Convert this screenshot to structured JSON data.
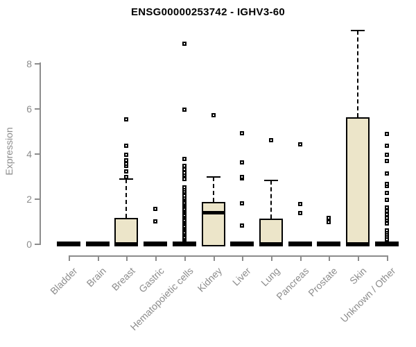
{
  "colors": {
    "box_fill": "#ECE5C9",
    "box_stroke": "#000000",
    "axis": "#8C8C8C",
    "tick_label": "#8C8C8C",
    "title": "#000000",
    "background": "#FFFFFF"
  },
  "chart_data": {
    "type": "boxplot",
    "title": "ENSG00000253742 - IGHV3-60",
    "xlabel": "",
    "ylabel": "Expression",
    "yticks": [
      0,
      2,
      4,
      6,
      8
    ],
    "ylim": [
      0,
      9.6
    ],
    "grid": false,
    "legend": null,
    "categories": [
      "Bladder",
      "Brain",
      "Breast",
      "Gastric",
      "Hematopoietic cells",
      "Kidney",
      "Liver",
      "Lung",
      "Pancreas",
      "Prostate",
      "Skin",
      "Unknown / Other"
    ],
    "series": [
      {
        "category": "Bladder",
        "q1": 0,
        "median": 0,
        "q3": 0,
        "whisker_low": 0,
        "whisker_high": 0,
        "outliers": []
      },
      {
        "category": "Brain",
        "q1": 0,
        "median": 0,
        "q3": 0,
        "whisker_low": 0,
        "whisker_high": 0,
        "outliers": []
      },
      {
        "category": "Breast",
        "q1": 0,
        "median": 0,
        "q3": 1.15,
        "whisker_low": 0,
        "whisker_high": 2.85,
        "outliers": [
          2.95,
          3.2,
          3.45,
          3.55,
          3.7,
          3.95,
          4.35,
          5.5
        ]
      },
      {
        "category": "Gastric",
        "q1": 0,
        "median": 0,
        "q3": 0,
        "whisker_low": 0,
        "whisker_high": 0,
        "outliers": [
          1.0,
          1.55
        ]
      },
      {
        "category": "Hematopoietic cells",
        "q1": 0,
        "median": 0,
        "q3": 0,
        "whisker_low": 0,
        "whisker_high": 0,
        "outliers": [
          0.15,
          0.22,
          0.29,
          0.36,
          0.43,
          0.5,
          0.57,
          0.64,
          0.71,
          0.78,
          0.85,
          0.92,
          0.99,
          1.06,
          1.13,
          1.2,
          1.27,
          1.34,
          1.41,
          1.48,
          1.55,
          1.62,
          1.69,
          1.76,
          1.83,
          1.9,
          1.97,
          2.04,
          2.11,
          2.3,
          2.4,
          2.5,
          2.85,
          3.05,
          3.15,
          3.3,
          3.45,
          3.75,
          5.95,
          8.85
        ]
      },
      {
        "category": "Kidney",
        "q1": 0,
        "median": 1.4,
        "q3": 1.85,
        "whisker_low": 0,
        "whisker_high": 2.95,
        "outliers": [
          5.7
        ]
      },
      {
        "category": "Liver",
        "q1": 0,
        "median": 0,
        "q3": 0,
        "whisker_low": 0,
        "whisker_high": 0,
        "outliers": [
          0.8,
          1.8,
          2.9,
          2.95,
          3.6,
          4.9
        ]
      },
      {
        "category": "Lung",
        "q1": 0,
        "median": 0,
        "q3": 1.1,
        "whisker_low": 0,
        "whisker_high": 2.8,
        "outliers": [
          4.6
        ]
      },
      {
        "category": "Pancreas",
        "q1": 0,
        "median": 0,
        "q3": 0,
        "whisker_low": 0,
        "whisker_high": 0,
        "outliers": [
          1.35,
          1.75,
          4.4
        ]
      },
      {
        "category": "Prostate",
        "q1": 0,
        "median": 0,
        "q3": 0,
        "whisker_low": 0,
        "whisker_high": 0,
        "outliers": [
          0.95,
          1.15
        ]
      },
      {
        "category": "Skin",
        "q1": 0,
        "median": 0,
        "q3": 5.6,
        "whisker_low": 0,
        "whisker_high": 9.45,
        "outliers": []
      },
      {
        "category": "Unknown / Other",
        "q1": 0,
        "median": 0,
        "q3": 0,
        "whisker_low": 0,
        "whisker_high": 0,
        "outliers": [
          0.2,
          0.3,
          0.4,
          0.5,
          0.6,
          0.9,
          1.05,
          1.15,
          1.3,
          1.45,
          1.6,
          1.95,
          2.25,
          2.55,
          2.65,
          3.1,
          3.65,
          3.95,
          4.35,
          4.85
        ]
      }
    ]
  }
}
